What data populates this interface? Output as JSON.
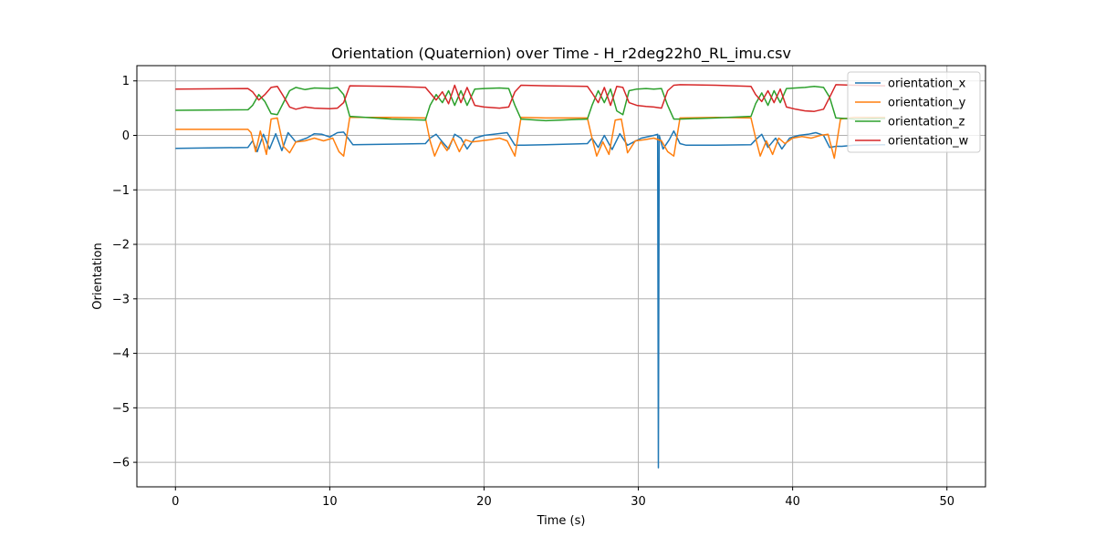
{
  "chart_data": {
    "type": "line",
    "title": "Orientation (Quaternion) over Time - H_r2deg22h0_RL_imu.csv",
    "xlabel": "Time (s)",
    "ylabel": "Orientation",
    "xlim": [
      -2.5,
      52.5
    ],
    "ylim": [
      -6.45,
      1.28
    ],
    "xticks": [
      0,
      10,
      20,
      30,
      40,
      50
    ],
    "xtick_labels": [
      "0",
      "10",
      "20",
      "30",
      "40",
      "50"
    ],
    "yticks": [
      1,
      0,
      -1,
      -2,
      -3,
      -4,
      -5,
      -6
    ],
    "ytick_labels": [
      "1",
      "0",
      "−1",
      "−2",
      "−3",
      "−4",
      "−5",
      "−6"
    ],
    "grid": true,
    "legend_position": "top-right",
    "series": [
      {
        "name": "orientation_x",
        "color": "#1f77b4",
        "x": [
          0,
          4.7,
          5.0,
          5.3,
          5.7,
          6.1,
          6.5,
          6.9,
          7.3,
          7.8,
          8.5,
          9.0,
          9.5,
          10.0,
          10.5,
          10.9,
          11.5,
          14.0,
          16.2,
          16.5,
          16.9,
          17.3,
          17.7,
          18.1,
          18.5,
          18.9,
          19.4,
          20.0,
          21.5,
          22.0,
          22.6,
          24.0,
          26.7,
          27.0,
          27.4,
          27.8,
          28.3,
          28.8,
          29.3,
          29.7,
          30.2,
          31.0,
          31.25,
          31.3,
          31.35,
          31.6,
          32.0,
          32.3,
          32.7,
          33.1,
          33.5,
          35.0,
          37.3,
          37.6,
          38.0,
          38.4,
          38.9,
          39.3,
          39.8,
          40.4,
          41.0,
          41.5,
          42.0,
          42.4,
          42.8,
          43.2,
          44.0,
          46.0
        ],
        "y": [
          -0.24,
          -0.22,
          -0.1,
          -0.3,
          0.02,
          -0.25,
          0.03,
          -0.28,
          0.05,
          -0.12,
          -0.05,
          0.03,
          0.02,
          -0.03,
          0.05,
          0.06,
          -0.17,
          -0.16,
          -0.15,
          -0.05,
          0.02,
          -0.12,
          -0.25,
          0.02,
          -0.05,
          -0.25,
          -0.05,
          0.0,
          0.05,
          -0.18,
          -0.18,
          -0.17,
          -0.15,
          -0.05,
          -0.22,
          0.0,
          -0.26,
          0.03,
          -0.18,
          -0.12,
          -0.05,
          0.0,
          0.02,
          -6.1,
          0.0,
          -0.25,
          -0.08,
          0.08,
          -0.15,
          -0.18,
          -0.18,
          -0.18,
          -0.17,
          -0.08,
          0.02,
          -0.22,
          -0.05,
          -0.25,
          -0.05,
          0.0,
          0.02,
          0.05,
          0.0,
          -0.22,
          -0.2,
          -0.2,
          -0.18,
          -0.17
        ]
      },
      {
        "name": "orientation_y",
        "color": "#ff7f0e",
        "x": [
          0,
          4.7,
          4.9,
          5.2,
          5.5,
          5.9,
          6.2,
          6.6,
          7.0,
          7.4,
          7.8,
          8.4,
          9.0,
          9.6,
          10.2,
          10.6,
          10.9,
          11.3,
          14.0,
          16.2,
          16.5,
          16.8,
          17.2,
          17.6,
          18.0,
          18.4,
          18.8,
          19.2,
          19.8,
          20.4,
          21.0,
          21.5,
          22.0,
          22.4,
          24.0,
          26.7,
          27.0,
          27.3,
          27.7,
          28.1,
          28.5,
          28.9,
          29.3,
          29.8,
          30.4,
          31.0,
          31.5,
          31.9,
          32.3,
          32.7,
          35.0,
          37.3,
          37.6,
          37.9,
          38.3,
          38.7,
          39.1,
          39.5,
          40.0,
          40.6,
          41.2,
          41.8,
          42.3,
          42.7,
          43.1,
          44.0,
          46.0
        ],
        "y": [
          0.11,
          0.11,
          0.05,
          -0.3,
          0.08,
          -0.35,
          0.3,
          0.32,
          -0.2,
          -0.32,
          -0.12,
          -0.1,
          -0.05,
          -0.1,
          -0.05,
          -0.3,
          -0.38,
          0.33,
          0.33,
          0.32,
          -0.1,
          -0.38,
          -0.12,
          -0.28,
          -0.05,
          -0.3,
          -0.08,
          -0.12,
          -0.1,
          -0.08,
          -0.05,
          -0.1,
          -0.38,
          0.33,
          0.32,
          0.32,
          -0.05,
          -0.38,
          -0.12,
          -0.35,
          0.28,
          0.3,
          -0.32,
          -0.1,
          -0.08,
          -0.05,
          -0.1,
          -0.3,
          -0.38,
          0.32,
          0.33,
          0.32,
          -0.05,
          -0.38,
          -0.1,
          -0.35,
          -0.05,
          -0.15,
          -0.05,
          -0.02,
          -0.05,
          0.0,
          0.02,
          -0.42,
          0.3,
          0.33,
          0.33
        ]
      },
      {
        "name": "orientation_z",
        "color": "#2ca02c",
        "x": [
          0,
          4.7,
          5.0,
          5.4,
          5.8,
          6.2,
          6.6,
          7.0,
          7.4,
          7.8,
          8.4,
          9.0,
          10.0,
          10.5,
          10.9,
          11.3,
          14.0,
          16.2,
          16.5,
          16.9,
          17.3,
          17.7,
          18.1,
          18.5,
          18.9,
          19.4,
          20.0,
          21.0,
          21.6,
          22.0,
          22.4,
          24.0,
          26.7,
          27.0,
          27.4,
          27.8,
          28.2,
          28.6,
          29.0,
          29.4,
          29.9,
          30.5,
          31.0,
          31.5,
          31.9,
          32.3,
          32.7,
          35.0,
          37.3,
          37.6,
          38.0,
          38.4,
          38.8,
          39.2,
          39.6,
          40.2,
          40.8,
          41.4,
          42.0,
          42.4,
          42.8,
          44.0,
          46.0
        ],
        "y": [
          0.46,
          0.47,
          0.55,
          0.75,
          0.62,
          0.4,
          0.38,
          0.6,
          0.82,
          0.88,
          0.84,
          0.87,
          0.86,
          0.88,
          0.75,
          0.35,
          0.3,
          0.28,
          0.55,
          0.75,
          0.6,
          0.82,
          0.55,
          0.82,
          0.55,
          0.85,
          0.86,
          0.87,
          0.86,
          0.55,
          0.3,
          0.27,
          0.3,
          0.55,
          0.82,
          0.6,
          0.85,
          0.45,
          0.38,
          0.82,
          0.85,
          0.86,
          0.85,
          0.86,
          0.55,
          0.3,
          0.3,
          0.32,
          0.35,
          0.58,
          0.78,
          0.55,
          0.82,
          0.6,
          0.86,
          0.87,
          0.88,
          0.9,
          0.88,
          0.7,
          0.32,
          0.3,
          0.31
        ]
      },
      {
        "name": "orientation_w",
        "color": "#d62728",
        "x": [
          0,
          4.7,
          5.0,
          5.4,
          5.8,
          6.2,
          6.6,
          7.0,
          7.4,
          7.8,
          8.4,
          9.0,
          10.0,
          10.5,
          10.9,
          11.3,
          14.0,
          16.2,
          16.5,
          16.9,
          17.3,
          17.7,
          18.1,
          18.5,
          18.9,
          19.4,
          20.0,
          21.0,
          21.6,
          22.0,
          22.4,
          24.0,
          26.7,
          27.0,
          27.4,
          27.8,
          28.2,
          28.6,
          29.0,
          29.4,
          29.9,
          30.5,
          31.0,
          31.5,
          31.9,
          32.3,
          32.7,
          35.0,
          37.3,
          37.6,
          38.0,
          38.4,
          38.8,
          39.2,
          39.6,
          40.2,
          40.8,
          41.4,
          42.0,
          42.4,
          42.8,
          44.0,
          46.0
        ],
        "y": [
          0.85,
          0.86,
          0.8,
          0.65,
          0.75,
          0.88,
          0.9,
          0.72,
          0.52,
          0.48,
          0.52,
          0.5,
          0.49,
          0.5,
          0.6,
          0.91,
          0.9,
          0.88,
          0.78,
          0.65,
          0.8,
          0.58,
          0.92,
          0.6,
          0.88,
          0.55,
          0.52,
          0.5,
          0.52,
          0.8,
          0.92,
          0.91,
          0.9,
          0.78,
          0.6,
          0.88,
          0.55,
          0.9,
          0.88,
          0.6,
          0.55,
          0.53,
          0.52,
          0.5,
          0.82,
          0.92,
          0.93,
          0.92,
          0.9,
          0.75,
          0.62,
          0.82,
          0.6,
          0.85,
          0.52,
          0.48,
          0.45,
          0.44,
          0.48,
          0.7,
          0.93,
          0.92,
          0.91
        ]
      }
    ]
  }
}
